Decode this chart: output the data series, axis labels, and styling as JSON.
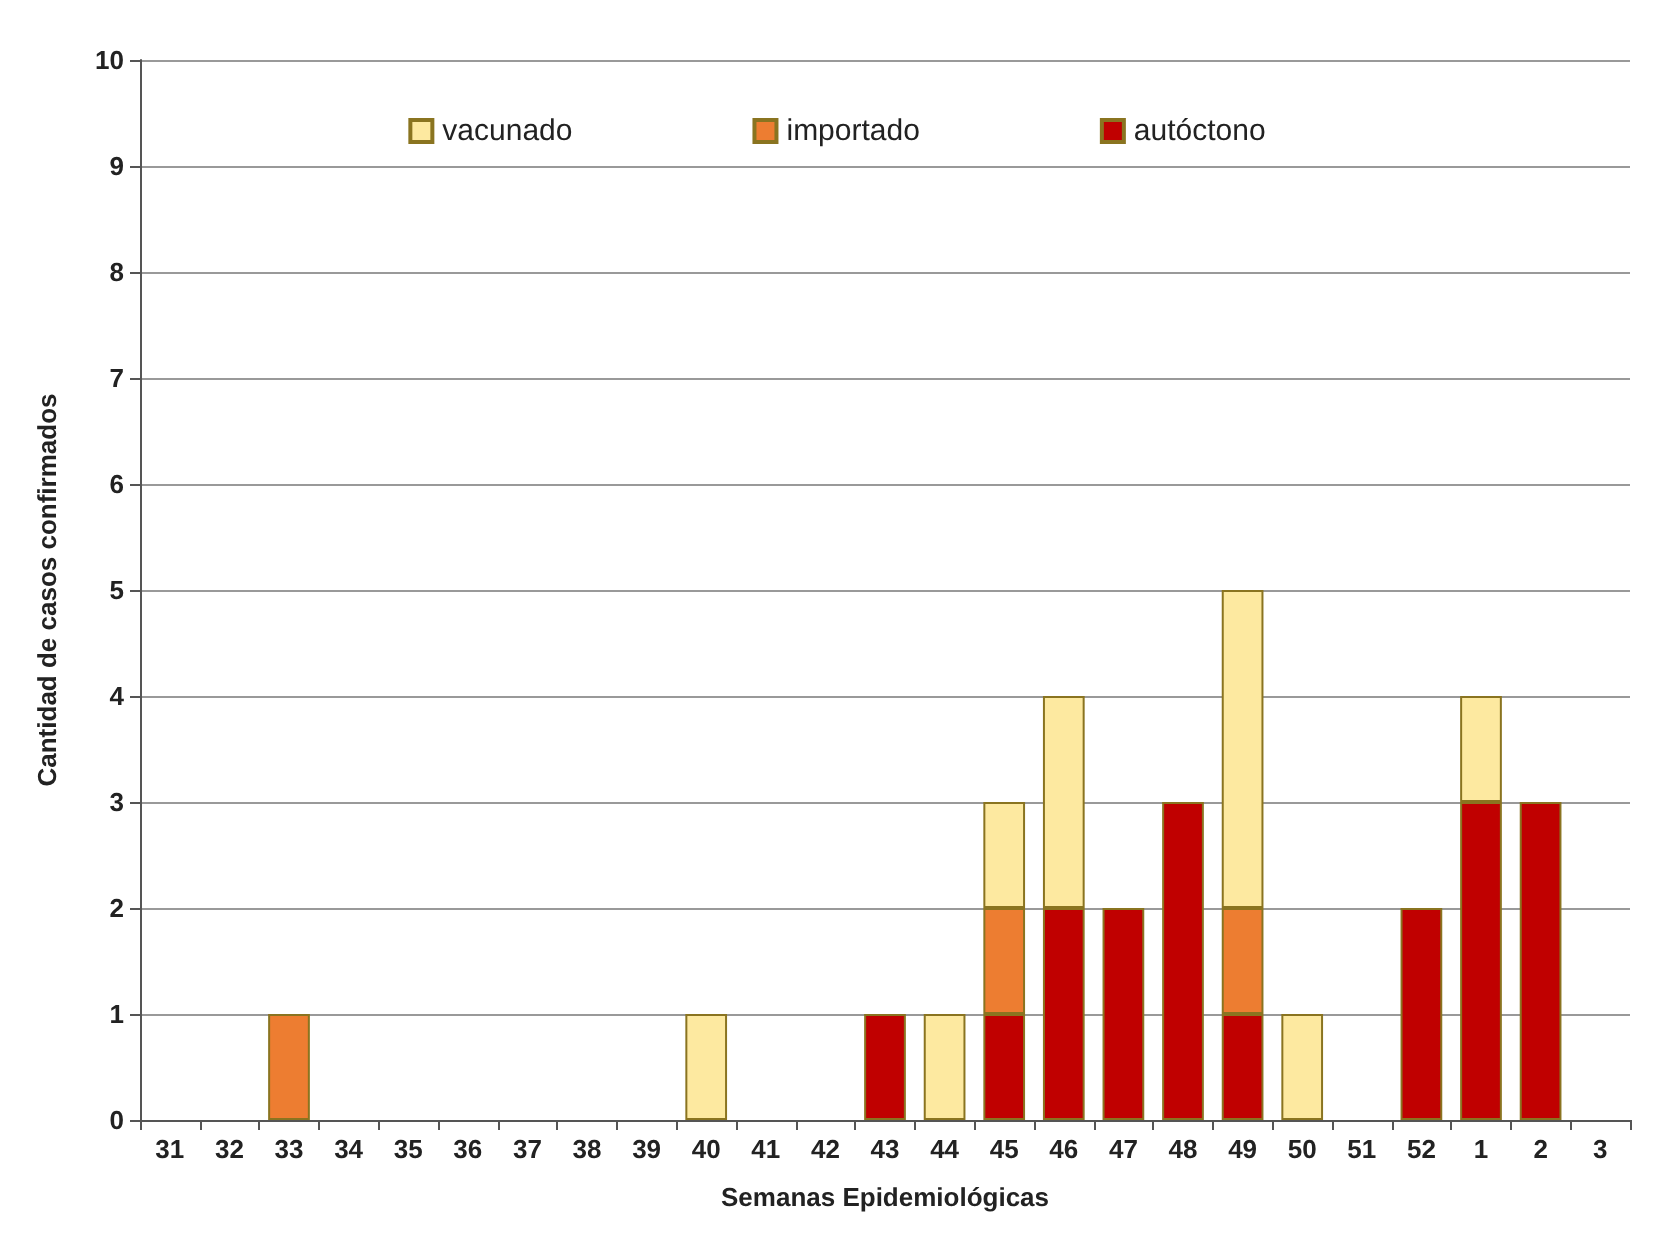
{
  "chart_data": {
    "type": "bar",
    "stacked": true,
    "xlabel": "Semanas Epidemiológicas",
    "ylabel": "Cantidad de casos confirmados",
    "categories": [
      "31",
      "32",
      "33",
      "34",
      "35",
      "36",
      "37",
      "38",
      "39",
      "40",
      "41",
      "42",
      "43",
      "44",
      "45",
      "46",
      "47",
      "48",
      "49",
      "50",
      "51",
      "52",
      "1",
      "2",
      "3"
    ],
    "series": [
      {
        "name": "autóctono",
        "color": "#c00000",
        "values": [
          null,
          null,
          null,
          null,
          null,
          null,
          null,
          null,
          null,
          null,
          null,
          null,
          1,
          null,
          1,
          2,
          2,
          3,
          1,
          null,
          null,
          2,
          3,
          3,
          null
        ]
      },
      {
        "name": "importado",
        "color": "#ed7d31",
        "values": [
          null,
          null,
          1,
          null,
          null,
          null,
          null,
          null,
          null,
          null,
          null,
          null,
          null,
          null,
          1,
          null,
          null,
          null,
          1,
          null,
          null,
          null,
          null,
          null,
          null
        ]
      },
      {
        "name": "vacunado",
        "color": "#fde9a0",
        "values": [
          null,
          null,
          null,
          null,
          null,
          null,
          null,
          null,
          null,
          1,
          null,
          null,
          null,
          1,
          1,
          2,
          null,
          null,
          3,
          1,
          null,
          null,
          1,
          null,
          null
        ]
      }
    ],
    "ylim": [
      0,
      10
    ],
    "yticks": [
      0,
      1,
      2,
      3,
      4,
      5,
      6,
      7,
      8,
      9,
      10
    ],
    "grid": "y",
    "legend": "top"
  }
}
